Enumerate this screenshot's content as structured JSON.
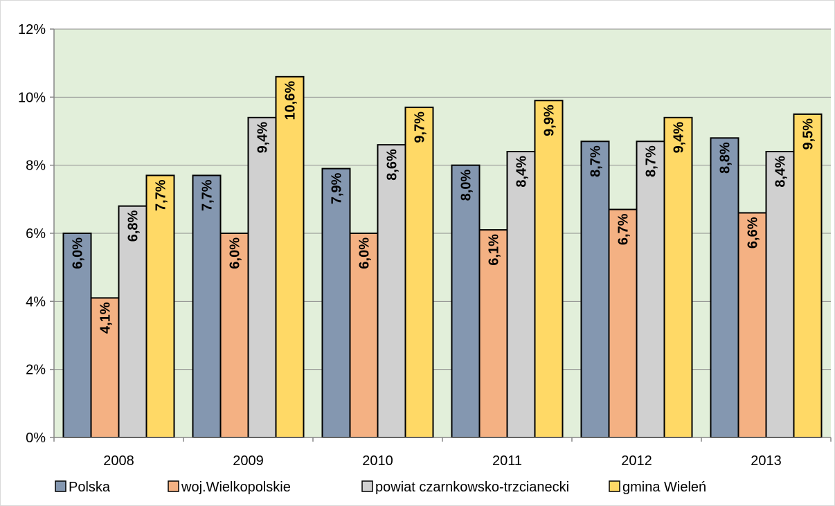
{
  "chart_data": {
    "type": "bar",
    "categories": [
      "2008",
      "2009",
      "2010",
      "2011",
      "2012",
      "2013"
    ],
    "series": [
      {
        "name": "Polska",
        "color": "#8497b0",
        "values": [
          6.0,
          7.7,
          7.9,
          8.0,
          8.7,
          8.8
        ],
        "labels": [
          "6,0%",
          "7,7%",
          "7,9%",
          "8,0%",
          "8,7%",
          "8,8%"
        ]
      },
      {
        "name": "woj.Wielkopolskie",
        "color": "#f4b183",
        "values": [
          4.1,
          6.0,
          6.0,
          6.1,
          6.7,
          6.6
        ],
        "labels": [
          "4,1%",
          "6,0%",
          "6,0%",
          "6,1%",
          "6,7%",
          "6,6%"
        ]
      },
      {
        "name": "powiat czarnkowsko-trzcianecki",
        "color": "#d0d0d0",
        "values": [
          6.8,
          9.4,
          8.6,
          8.4,
          8.7,
          8.4
        ],
        "labels": [
          "6,8%",
          "9,4%",
          "8,6%",
          "8,4%",
          "8,7%",
          "8,4%"
        ]
      },
      {
        "name": "gmina Wieleń",
        "color": "#ffd966",
        "values": [
          7.7,
          10.6,
          9.7,
          9.9,
          9.4,
          9.5
        ],
        "labels": [
          "7,7%",
          "10,6%",
          "9,7%",
          "9,9%",
          "9,4%",
          "9,5%"
        ]
      }
    ],
    "y_ticks": [
      "0%",
      "2%",
      "4%",
      "6%",
      "8%",
      "10%",
      "12%"
    ],
    "ylim": [
      0,
      12
    ],
    "title": "",
    "xlabel": "",
    "ylabel": "",
    "grid": true,
    "legend_position": "bottom",
    "plot_background": "#e2efda"
  }
}
